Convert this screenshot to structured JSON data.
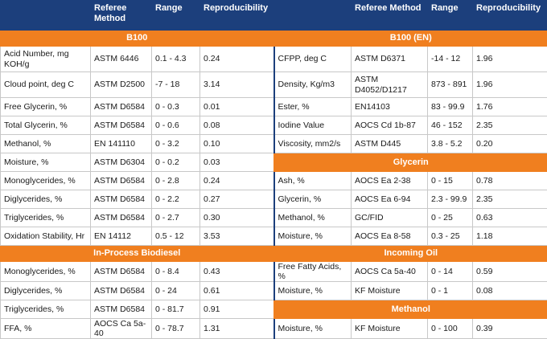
{
  "headers": {
    "left": [
      "",
      "Referee Method",
      "Range",
      "Reproducibility"
    ],
    "right": [
      "",
      "Referee Method",
      "Range",
      "Reproducibility"
    ]
  },
  "colors": {
    "header_bg": "#1c3f7c",
    "section_bg": "#f07f1f"
  },
  "rows": [
    {
      "type": "section",
      "left": "B100",
      "right": "B100 (EN)"
    },
    {
      "type": "data",
      "tall": true,
      "left": [
        "Acid Number, mg KOH/g",
        "ASTM 6446",
        "0.1 - 4.3",
        "0.24"
      ],
      "right": [
        "CFPP, deg C",
        "ASTM D6371",
        "-14 - 12",
        "1.96"
      ]
    },
    {
      "type": "data",
      "tall": true,
      "left": [
        "Cloud point, deg C",
        "ASTM D2500",
        "-7 - 18",
        "3.14"
      ],
      "right": [
        "Density, Kg/m3",
        "ASTM D4052/D1217",
        "873 - 891",
        "1.96"
      ]
    },
    {
      "type": "data",
      "left": [
        "Free Glycerin, %",
        "ASTM D6584",
        "0 - 0.3",
        "0.01"
      ],
      "right": [
        "Ester, %",
        "EN14103",
        "83 - 99.9",
        "1.76"
      ]
    },
    {
      "type": "data",
      "left": [
        "Total Glycerin, %",
        "ASTM D6584",
        "0 - 0.6",
        "0.08"
      ],
      "right": [
        "Iodine Value",
        "AOCS Cd 1b-87",
        "46 - 152",
        "2.35"
      ]
    },
    {
      "type": "data",
      "left": [
        "Methanol, %",
        "EN 141110",
        "0 - 3.2",
        "0.10"
      ],
      "right": [
        "Viscosity, mm2/s",
        "ASTM D445",
        "3.8 - 5.2",
        "0.20"
      ]
    },
    {
      "type": "mixed",
      "left": [
        "Moisture, %",
        "ASTM D6304",
        "0 - 0.2",
        "0.03"
      ],
      "right_section": "Glycerin"
    },
    {
      "type": "data",
      "left": [
        "Monoglycerides, %",
        "ASTM D6584",
        "0 - 2.8",
        "0.24"
      ],
      "right": [
        "Ash, %",
        "AOCS Ea 2-38",
        "0 - 15",
        "0.78"
      ]
    },
    {
      "type": "data",
      "left": [
        "Diglycerides, %",
        "ASTM D6584",
        "0 - 2.2",
        "0.27"
      ],
      "right": [
        "Glycerin, %",
        "AOCS Ea 6-94",
        "2.3 - 99.9",
        "2.35"
      ]
    },
    {
      "type": "data",
      "left": [
        "Triglycerides, %",
        "ASTM D6584",
        "0 - 2.7",
        "0.30"
      ],
      "right": [
        "Methanol, %",
        "GC/FID",
        "0 - 25",
        "0.63"
      ]
    },
    {
      "type": "data",
      "left": [
        "Oxidation Stability, Hr",
        "EN 14112",
        "0.5 - 12",
        "3.53"
      ],
      "right": [
        "Moisture, %",
        "AOCS Ea 8-58",
        "0.3 - 25",
        "1.18"
      ]
    },
    {
      "type": "section",
      "left": "In-Process Biodiesel",
      "right": "Incoming Oil"
    },
    {
      "type": "data",
      "left": [
        "Monoglycerides, %",
        "ASTM D6584",
        "0 - 8.4",
        "0.43"
      ],
      "right": [
        "Free Fatty Acids, %",
        "AOCS Ca 5a-40",
        "0 - 14",
        "0.59"
      ]
    },
    {
      "type": "data",
      "left": [
        "Diglycerides, %",
        "ASTM D6584",
        "0 - 24",
        "0.61"
      ],
      "right": [
        "Moisture, %",
        "KF Moisture",
        "0 - 1",
        "0.08"
      ]
    },
    {
      "type": "mixed",
      "left": [
        "Triglycerides, %",
        "ASTM D6584",
        "0 - 81.7",
        "0.91"
      ],
      "right_section": "Methanol"
    },
    {
      "type": "data",
      "left": [
        "FFA, %",
        "AOCS Ca 5a-40",
        "0 - 78.7",
        "1.31"
      ],
      "right": [
        "Moisture, %",
        "KF Moisture",
        "0 - 100",
        "0.39"
      ]
    }
  ]
}
